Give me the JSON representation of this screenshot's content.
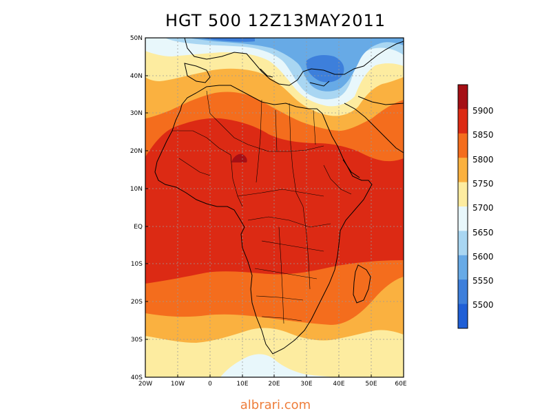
{
  "title": "HGT 500 12Z13MAY2011",
  "watermark": "albrari.com",
  "lat_ticks": [
    "50N",
    "40N",
    "30N",
    "20N",
    "10N",
    "EQ",
    "10S",
    "20S",
    "30S",
    "40S"
  ],
  "lon_ticks": [
    "20W",
    "10W",
    "0",
    "10E",
    "20E",
    "30E",
    "40E",
    "50E",
    "60E"
  ],
  "colorbar": {
    "labels": [
      "5900",
      "5850",
      "5800",
      "5750",
      "5700",
      "5650",
      "5600",
      "5550",
      "5500"
    ],
    "colors": [
      "#a50f15",
      "#dc2a14",
      "#f46d1d",
      "#fab140",
      "#fdeca0",
      "#e8f7fb",
      "#a9d6f2",
      "#67aae6",
      "#3d7fdb",
      "#1f5fd6"
    ]
  },
  "colors": {
    "c5900": "#a50f15",
    "c5850": "#dc2a14",
    "c5800": "#f46d1d",
    "c5750": "#fab140",
    "c5700": "#fdeca0",
    "c5650": "#e8f7fb",
    "c5600": "#a9d6f2",
    "c5550": "#67aae6",
    "c5500": "#3d7fdb",
    "c5450": "#1f5fd6"
  }
}
